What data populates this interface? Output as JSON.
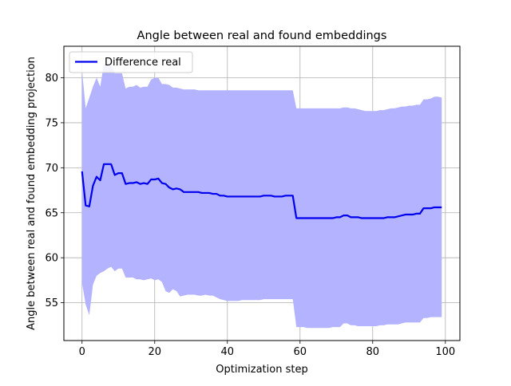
{
  "chart_data": {
    "type": "line",
    "title": "Angle between real and found embeddings",
    "xlabel": "Optimization step",
    "ylabel": "Angle between real and found embedding projection",
    "xlim": [
      -5,
      104
    ],
    "ylim": [
      50.8,
      83.5
    ],
    "xticks": [
      0,
      20,
      40,
      60,
      80,
      100
    ],
    "yticks": [
      55,
      60,
      65,
      70,
      75,
      80
    ],
    "grid": true,
    "legend_position": "top-left",
    "colors": {
      "line": "#0000ee",
      "band": "#b3b3ff",
      "grid": "#b0b0b0",
      "axis": "#000000"
    },
    "series": [
      {
        "name": "Difference real",
        "kind": "line",
        "x": [
          0,
          1,
          2,
          3,
          4,
          5,
          6,
          7,
          8,
          9,
          10,
          11,
          12,
          13,
          14,
          15,
          16,
          17,
          18,
          19,
          20,
          21,
          22,
          23,
          24,
          25,
          26,
          27,
          28,
          29,
          30,
          31,
          32,
          33,
          34,
          35,
          36,
          37,
          38,
          39,
          40,
          41,
          42,
          43,
          44,
          45,
          46,
          47,
          48,
          49,
          50,
          51,
          52,
          53,
          54,
          55,
          56,
          57,
          58,
          59,
          60,
          61,
          62,
          63,
          64,
          65,
          66,
          67,
          68,
          69,
          70,
          71,
          72,
          73,
          74,
          75,
          76,
          77,
          78,
          79,
          80,
          81,
          82,
          83,
          84,
          85,
          86,
          87,
          88,
          89,
          90,
          91,
          92,
          93,
          94,
          95,
          96,
          97,
          98,
          99
        ],
        "y": [
          69.6,
          65.8,
          65.7,
          68.0,
          69.0,
          68.6,
          70.4,
          70.4,
          70.4,
          69.2,
          69.4,
          69.4,
          68.2,
          68.3,
          68.3,
          68.4,
          68.2,
          68.3,
          68.2,
          68.7,
          68.7,
          68.8,
          68.3,
          68.2,
          67.8,
          67.6,
          67.7,
          67.6,
          67.3,
          67.3,
          67.3,
          67.3,
          67.3,
          67.2,
          67.2,
          67.2,
          67.1,
          67.1,
          66.9,
          66.9,
          66.8,
          66.8,
          66.8,
          66.8,
          66.8,
          66.8,
          66.8,
          66.8,
          66.8,
          66.8,
          66.9,
          66.9,
          66.9,
          66.8,
          66.8,
          66.8,
          66.9,
          66.9,
          66.9,
          64.4,
          64.4,
          64.4,
          64.4,
          64.4,
          64.4,
          64.4,
          64.4,
          64.4,
          64.4,
          64.4,
          64.5,
          64.5,
          64.7,
          64.7,
          64.5,
          64.5,
          64.5,
          64.4,
          64.4,
          64.4,
          64.4,
          64.4,
          64.4,
          64.4,
          64.5,
          64.5,
          64.5,
          64.6,
          64.7,
          64.8,
          64.8,
          64.8,
          64.9,
          64.9,
          65.5,
          65.5,
          65.5,
          65.6,
          65.6,
          65.6
        ]
      },
      {
        "kind": "band",
        "x": [
          0,
          1,
          2,
          3,
          4,
          5,
          6,
          7,
          8,
          9,
          10,
          11,
          12,
          13,
          14,
          15,
          16,
          17,
          18,
          19,
          20,
          21,
          22,
          23,
          24,
          25,
          26,
          27,
          28,
          29,
          30,
          31,
          32,
          33,
          34,
          35,
          36,
          37,
          38,
          39,
          40,
          41,
          42,
          43,
          44,
          45,
          46,
          47,
          48,
          49,
          50,
          51,
          52,
          53,
          54,
          55,
          56,
          57,
          58,
          59,
          60,
          61,
          62,
          63,
          64,
          65,
          66,
          67,
          68,
          69,
          70,
          71,
          72,
          73,
          74,
          75,
          76,
          77,
          78,
          79,
          80,
          81,
          82,
          83,
          84,
          85,
          86,
          87,
          88,
          89,
          90,
          91,
          92,
          93,
          94,
          95,
          96,
          97,
          98,
          99
        ],
        "upper": [
          80.8,
          76.6,
          77.8,
          79.0,
          80.0,
          79.0,
          81.5,
          81.5,
          81.5,
          80.5,
          80.5,
          80.5,
          78.8,
          79.0,
          79.0,
          79.2,
          78.9,
          79.0,
          79.0,
          79.8,
          80.0,
          80.0,
          79.3,
          79.3,
          79.2,
          78.9,
          78.9,
          78.8,
          78.7,
          78.7,
          78.7,
          78.7,
          78.6,
          78.6,
          78.6,
          78.6,
          78.6,
          78.6,
          78.6,
          78.6,
          78.6,
          78.6,
          78.6,
          78.6,
          78.6,
          78.6,
          78.6,
          78.6,
          78.6,
          78.6,
          78.6,
          78.6,
          78.6,
          78.6,
          78.6,
          78.6,
          78.6,
          78.6,
          78.6,
          76.6,
          76.6,
          76.6,
          76.6,
          76.6,
          76.6,
          76.6,
          76.6,
          76.6,
          76.6,
          76.6,
          76.6,
          76.6,
          76.7,
          76.7,
          76.6,
          76.6,
          76.5,
          76.4,
          76.3,
          76.3,
          76.3,
          76.3,
          76.4,
          76.4,
          76.5,
          76.6,
          76.6,
          76.7,
          76.8,
          76.8,
          76.9,
          76.9,
          77.0,
          77.0,
          77.6,
          77.6,
          77.7,
          77.9,
          77.9,
          77.8
        ],
        "lower": [
          57.2,
          54.8,
          53.6,
          57.0,
          58.0,
          58.3,
          58.5,
          58.8,
          59.0,
          58.5,
          58.8,
          58.8,
          57.8,
          57.8,
          57.8,
          57.6,
          57.6,
          57.5,
          57.6,
          57.7,
          57.5,
          57.6,
          57.3,
          56.3,
          56.1,
          56.5,
          56.3,
          55.7,
          55.8,
          55.9,
          55.9,
          55.9,
          55.8,
          55.8,
          55.9,
          55.8,
          55.8,
          55.6,
          55.4,
          55.3,
          55.2,
          55.2,
          55.2,
          55.2,
          55.3,
          55.3,
          55.3,
          55.3,
          55.3,
          55.3,
          55.4,
          55.4,
          55.4,
          55.4,
          55.4,
          55.4,
          55.4,
          55.4,
          55.4,
          52.3,
          52.3,
          52.3,
          52.2,
          52.2,
          52.2,
          52.2,
          52.2,
          52.2,
          52.2,
          52.3,
          52.3,
          52.3,
          52.7,
          52.7,
          52.5,
          52.5,
          52.4,
          52.4,
          52.4,
          52.4,
          52.4,
          52.4,
          52.5,
          52.5,
          52.6,
          52.6,
          52.6,
          52.6,
          52.7,
          52.8,
          52.8,
          52.8,
          52.8,
          52.8,
          53.3,
          53.3,
          53.4,
          53.4,
          53.4,
          53.4
        ]
      }
    ]
  }
}
